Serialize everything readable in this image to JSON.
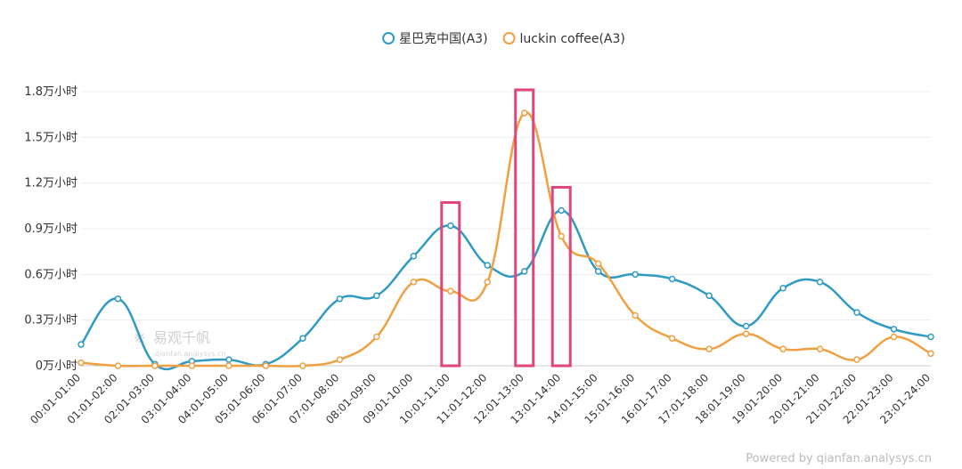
{
  "chart_data": {
    "type": "line",
    "categories": [
      "00:01-01:00",
      "01:01-02:00",
      "02:01-03:00",
      "03:01-04:00",
      "04:01-05:00",
      "05:01-06:00",
      "06:01-07:00",
      "07:01-08:00",
      "08:01-09:00",
      "09:01-10:00",
      "10:01-11:00",
      "11:01-12:00",
      "12:01-13:00",
      "13:01-14:00",
      "14:01-15:00",
      "15:01-16:00",
      "16:01-17:00",
      "17:01-18:00",
      "18:01-19:00",
      "19:01-20:00",
      "20:01-21:00",
      "21:01-22:00",
      "22:01-23:00",
      "23:01-24:00"
    ],
    "series": [
      {
        "name": "星巴克中国(A3)",
        "color": "#2f9ac4",
        "values": [
          0.14,
          0.44,
          0.01,
          0.03,
          0.04,
          0.01,
          0.18,
          0.44,
          0.46,
          0.72,
          0.92,
          0.66,
          0.62,
          1.02,
          0.62,
          0.6,
          0.57,
          0.46,
          0.26,
          0.51,
          0.55,
          0.35,
          0.24,
          0.19
        ]
      },
      {
        "name": "luckin coffee(A3)",
        "color": "#f0a040",
        "values": [
          0.02,
          0.0,
          0.0,
          0.0,
          0.0,
          0.0,
          0.0,
          0.04,
          0.19,
          0.55,
          0.49,
          0.55,
          1.66,
          0.85,
          0.67,
          0.33,
          0.18,
          0.11,
          0.21,
          0.11,
          0.11,
          0.04,
          0.19,
          0.08
        ]
      }
    ],
    "y_ticks": [
      "0万小时",
      "0.3万小时",
      "0.6万小时",
      "0.9万小时",
      "1.2万小时",
      "1.5万小时",
      "1.8万小时"
    ],
    "ylim": [
      0,
      1.8
    ],
    "legend_position": "top-center",
    "grid": true,
    "highlighted_categories": [
      "10:01-11:00",
      "12:01-13:00",
      "13:01-14:00"
    ],
    "highlight_color": "#e0457b"
  },
  "watermark": {
    "name": "易观千帆",
    "url": "qianfan.analysys.cn"
  },
  "footer": "Powered by qianfan.analysys.cn"
}
